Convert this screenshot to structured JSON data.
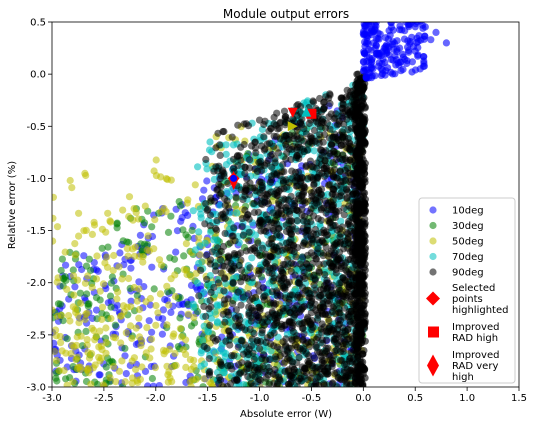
{
  "chart_data": {
    "type": "scatter",
    "title": "Module output errors",
    "xlabel": "Absolute error (W)",
    "ylabel": "Relative error (%)",
    "xlim": [
      -3.0,
      1.5
    ],
    "ylim": [
      -3.0,
      0.5
    ],
    "x_ticks": [
      "-3.0",
      "-2.5",
      "-2.0",
      "-1.5",
      "-1.0",
      "-0.5",
      "0.0",
      "0.5",
      "1.0",
      "1.5"
    ],
    "y_ticks": [
      "0.5",
      "0.0",
      "-0.5",
      "-1.0",
      "-1.5",
      "-2.0",
      "-2.5",
      "-3.0"
    ],
    "x_tick_values": [
      -3.0,
      -2.5,
      -2.0,
      -1.5,
      -1.0,
      -0.5,
      0.0,
      0.5,
      1.0,
      1.5
    ],
    "y_tick_values": [
      0.5,
      0.0,
      -0.5,
      -1.0,
      -1.5,
      -2.0,
      -2.5,
      -3.0
    ],
    "grid": false,
    "legend_position": "bottom-right",
    "series": [
      {
        "name": "10deg",
        "color": "#0000ff",
        "marker": "circle",
        "regions": "full wedge x -3.0..0.0 (sparse, spread), tight cluster near x 0.0..0.3 with y 0.0..0.5 and a few up to x 0.8"
      },
      {
        "name": "30deg",
        "color": "#008000",
        "marker": "circle",
        "regions": "wedge x -3.0..0.0, boundary from (-3.0,-1.75) to (0.0,0.0)"
      },
      {
        "name": "50deg",
        "color": "#bfbf00",
        "marker": "circle",
        "regions": "wedge x -3.0..0.0, upper boundary from (-3.0,-1.0) to (0.0,0.0)"
      },
      {
        "name": "70deg",
        "color": "#00bfbf",
        "marker": "circle",
        "regions": "dense wedge x -1.6..0.0"
      },
      {
        "name": "90deg",
        "color": "#000000",
        "marker": "circle",
        "regions": "very dense wedge x -1.7..0.0, upper boundary from (-1.5,-0.6) to (0.0,-0.05)"
      }
    ],
    "highlights": [
      {
        "name": "Selected points highlighted",
        "color": "#ff0000",
        "marker": "diamond",
        "points": [
          [
            -1.25,
            -1.0
          ]
        ]
      },
      {
        "name": "Improved RAD high",
        "color": "#ff0000",
        "marker": "square",
        "points": [
          [
            -0.5,
            -0.38
          ]
        ]
      },
      {
        "name": "Improved RAD very high",
        "color": "#ff0000",
        "marker": "thin_diamond",
        "points": [
          [
            -1.25,
            -1.02
          ]
        ]
      }
    ],
    "extra_markers": [
      {
        "marker": "triangle-down",
        "color": "#ff0000",
        "point": [
          -0.68,
          -0.37
        ]
      },
      {
        "marker": "triangle-up",
        "color": "#00bfbf",
        "point": [
          -0.55,
          -0.36
        ]
      },
      {
        "marker": "triangle-right",
        "color": "#bfbf00",
        "point": [
          -0.68,
          -0.5
        ]
      },
      {
        "marker": "circle",
        "color": "#0000ff",
        "point": [
          -1.25,
          -1.0
        ]
      }
    ],
    "legend": [
      {
        "label": "10deg",
        "color": "#0000ff",
        "marker": "circle"
      },
      {
        "label": "30deg",
        "color": "#008000",
        "marker": "circle"
      },
      {
        "label": "50deg",
        "color": "#bfbf00",
        "marker": "circle"
      },
      {
        "label": "70deg",
        "color": "#00bfbf",
        "marker": "circle"
      },
      {
        "label": "90deg",
        "color": "#000000",
        "marker": "circle"
      },
      {
        "label": [
          "Selected",
          "points",
          "highlighted"
        ],
        "color": "#ff0000",
        "marker": "diamond"
      },
      {
        "label": [
          "Improved",
          "RAD high"
        ],
        "color": "#ff0000",
        "marker": "square"
      },
      {
        "label": [
          "Improved",
          "RAD very",
          "high"
        ],
        "color": "#ff0000",
        "marker": "thin_diamond"
      }
    ]
  }
}
